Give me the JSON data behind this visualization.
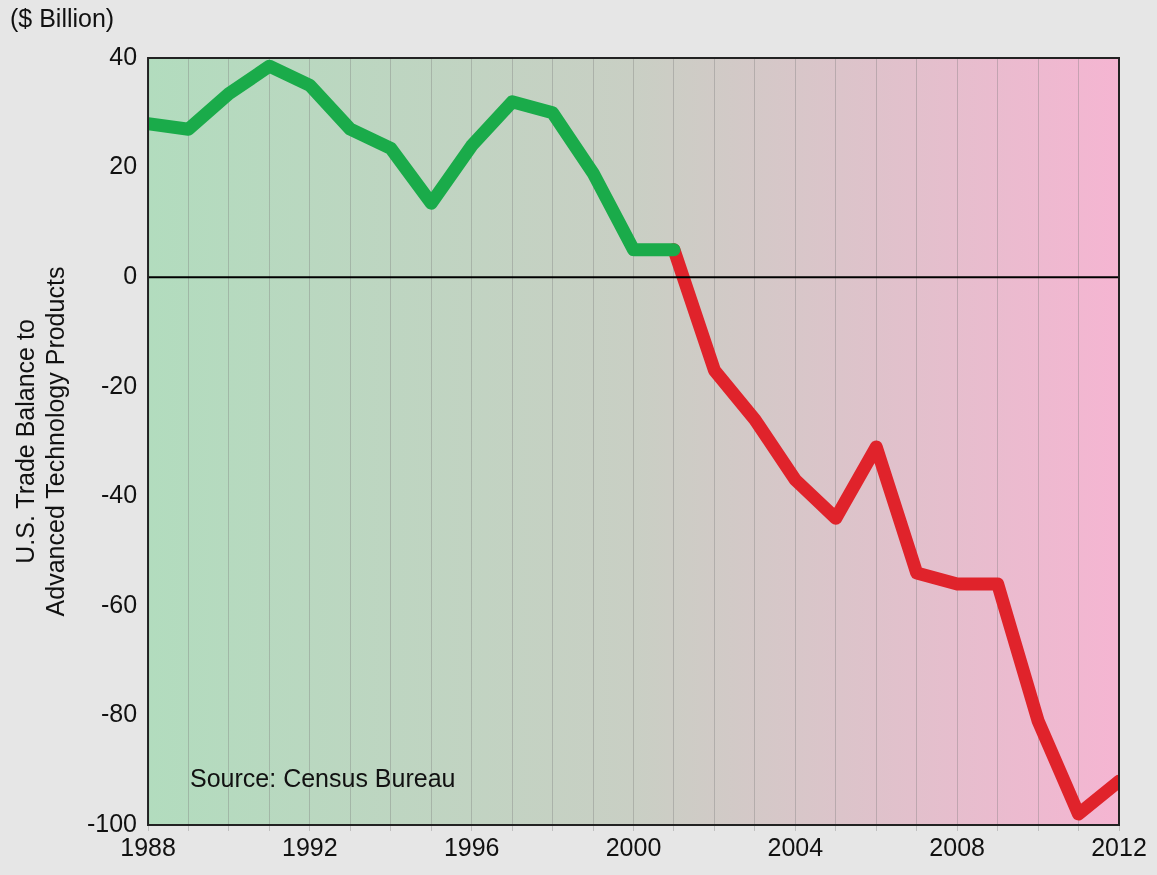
{
  "chart_data": {
    "type": "line",
    "subtitle": "($ Billion)",
    "ylabel": "U.S. Trade Balance to\nAdvanced Technology Products",
    "series": [
      {
        "color": "#1aab4a",
        "x": [
          1988,
          1989,
          1990,
          1991,
          1992,
          1993,
          1994,
          1995,
          1996,
          1997,
          1998,
          1999,
          2000,
          2001
        ],
        "values": [
          28,
          27,
          33.5,
          38.5,
          35,
          27,
          23.5,
          13.5,
          24,
          32,
          30,
          19,
          5,
          5
        ]
      },
      {
        "color": "#e0232b",
        "x": [
          2001,
          2002,
          2003,
          2004,
          2005,
          2006,
          2007,
          2008,
          2009,
          2010,
          2011,
          2012
        ],
        "values": [
          5,
          -17,
          -26,
          -37,
          -44,
          -31,
          -54,
          -56,
          -56,
          -81,
          -98,
          -92
        ]
      }
    ],
    "xlim": [
      1988,
      2012
    ],
    "xticks": [
      1988,
      {
        "value": 1989,
        "label": null
      },
      {
        "value": 1990,
        "label": null
      },
      {
        "value": 1991,
        "label": null
      },
      1992,
      {
        "value": 1993,
        "label": null
      },
      {
        "value": 1994,
        "label": null
      },
      {
        "value": 1995,
        "label": null
      },
      1996,
      {
        "value": 1997,
        "label": null
      },
      {
        "value": 1998,
        "label": null
      },
      {
        "value": 1999,
        "label": null
      },
      2000,
      {
        "value": 2001,
        "label": null
      },
      {
        "value": 2002,
        "label": null
      },
      {
        "value": 2003,
        "label": null
      },
      2004,
      {
        "value": 2005,
        "label": null
      },
      {
        "value": 2006,
        "label": null
      },
      {
        "value": 2007,
        "label": null
      },
      2008,
      {
        "value": 2009,
        "label": null
      },
      {
        "value": 2010,
        "label": null
      },
      {
        "value": 2011,
        "label": null
      },
      2012
    ],
    "ylim": [
      -100,
      40
    ],
    "yticks": [
      -100,
      -80,
      -60,
      -40,
      -20,
      0,
      20,
      40
    ],
    "grid": "x",
    "marker": "none",
    "legend": false,
    "ref_lines": [
      {
        "axis": "y",
        "value": 0,
        "color": "#000000"
      }
    ],
    "annotations": [
      "Source: Census Bureau"
    ]
  }
}
